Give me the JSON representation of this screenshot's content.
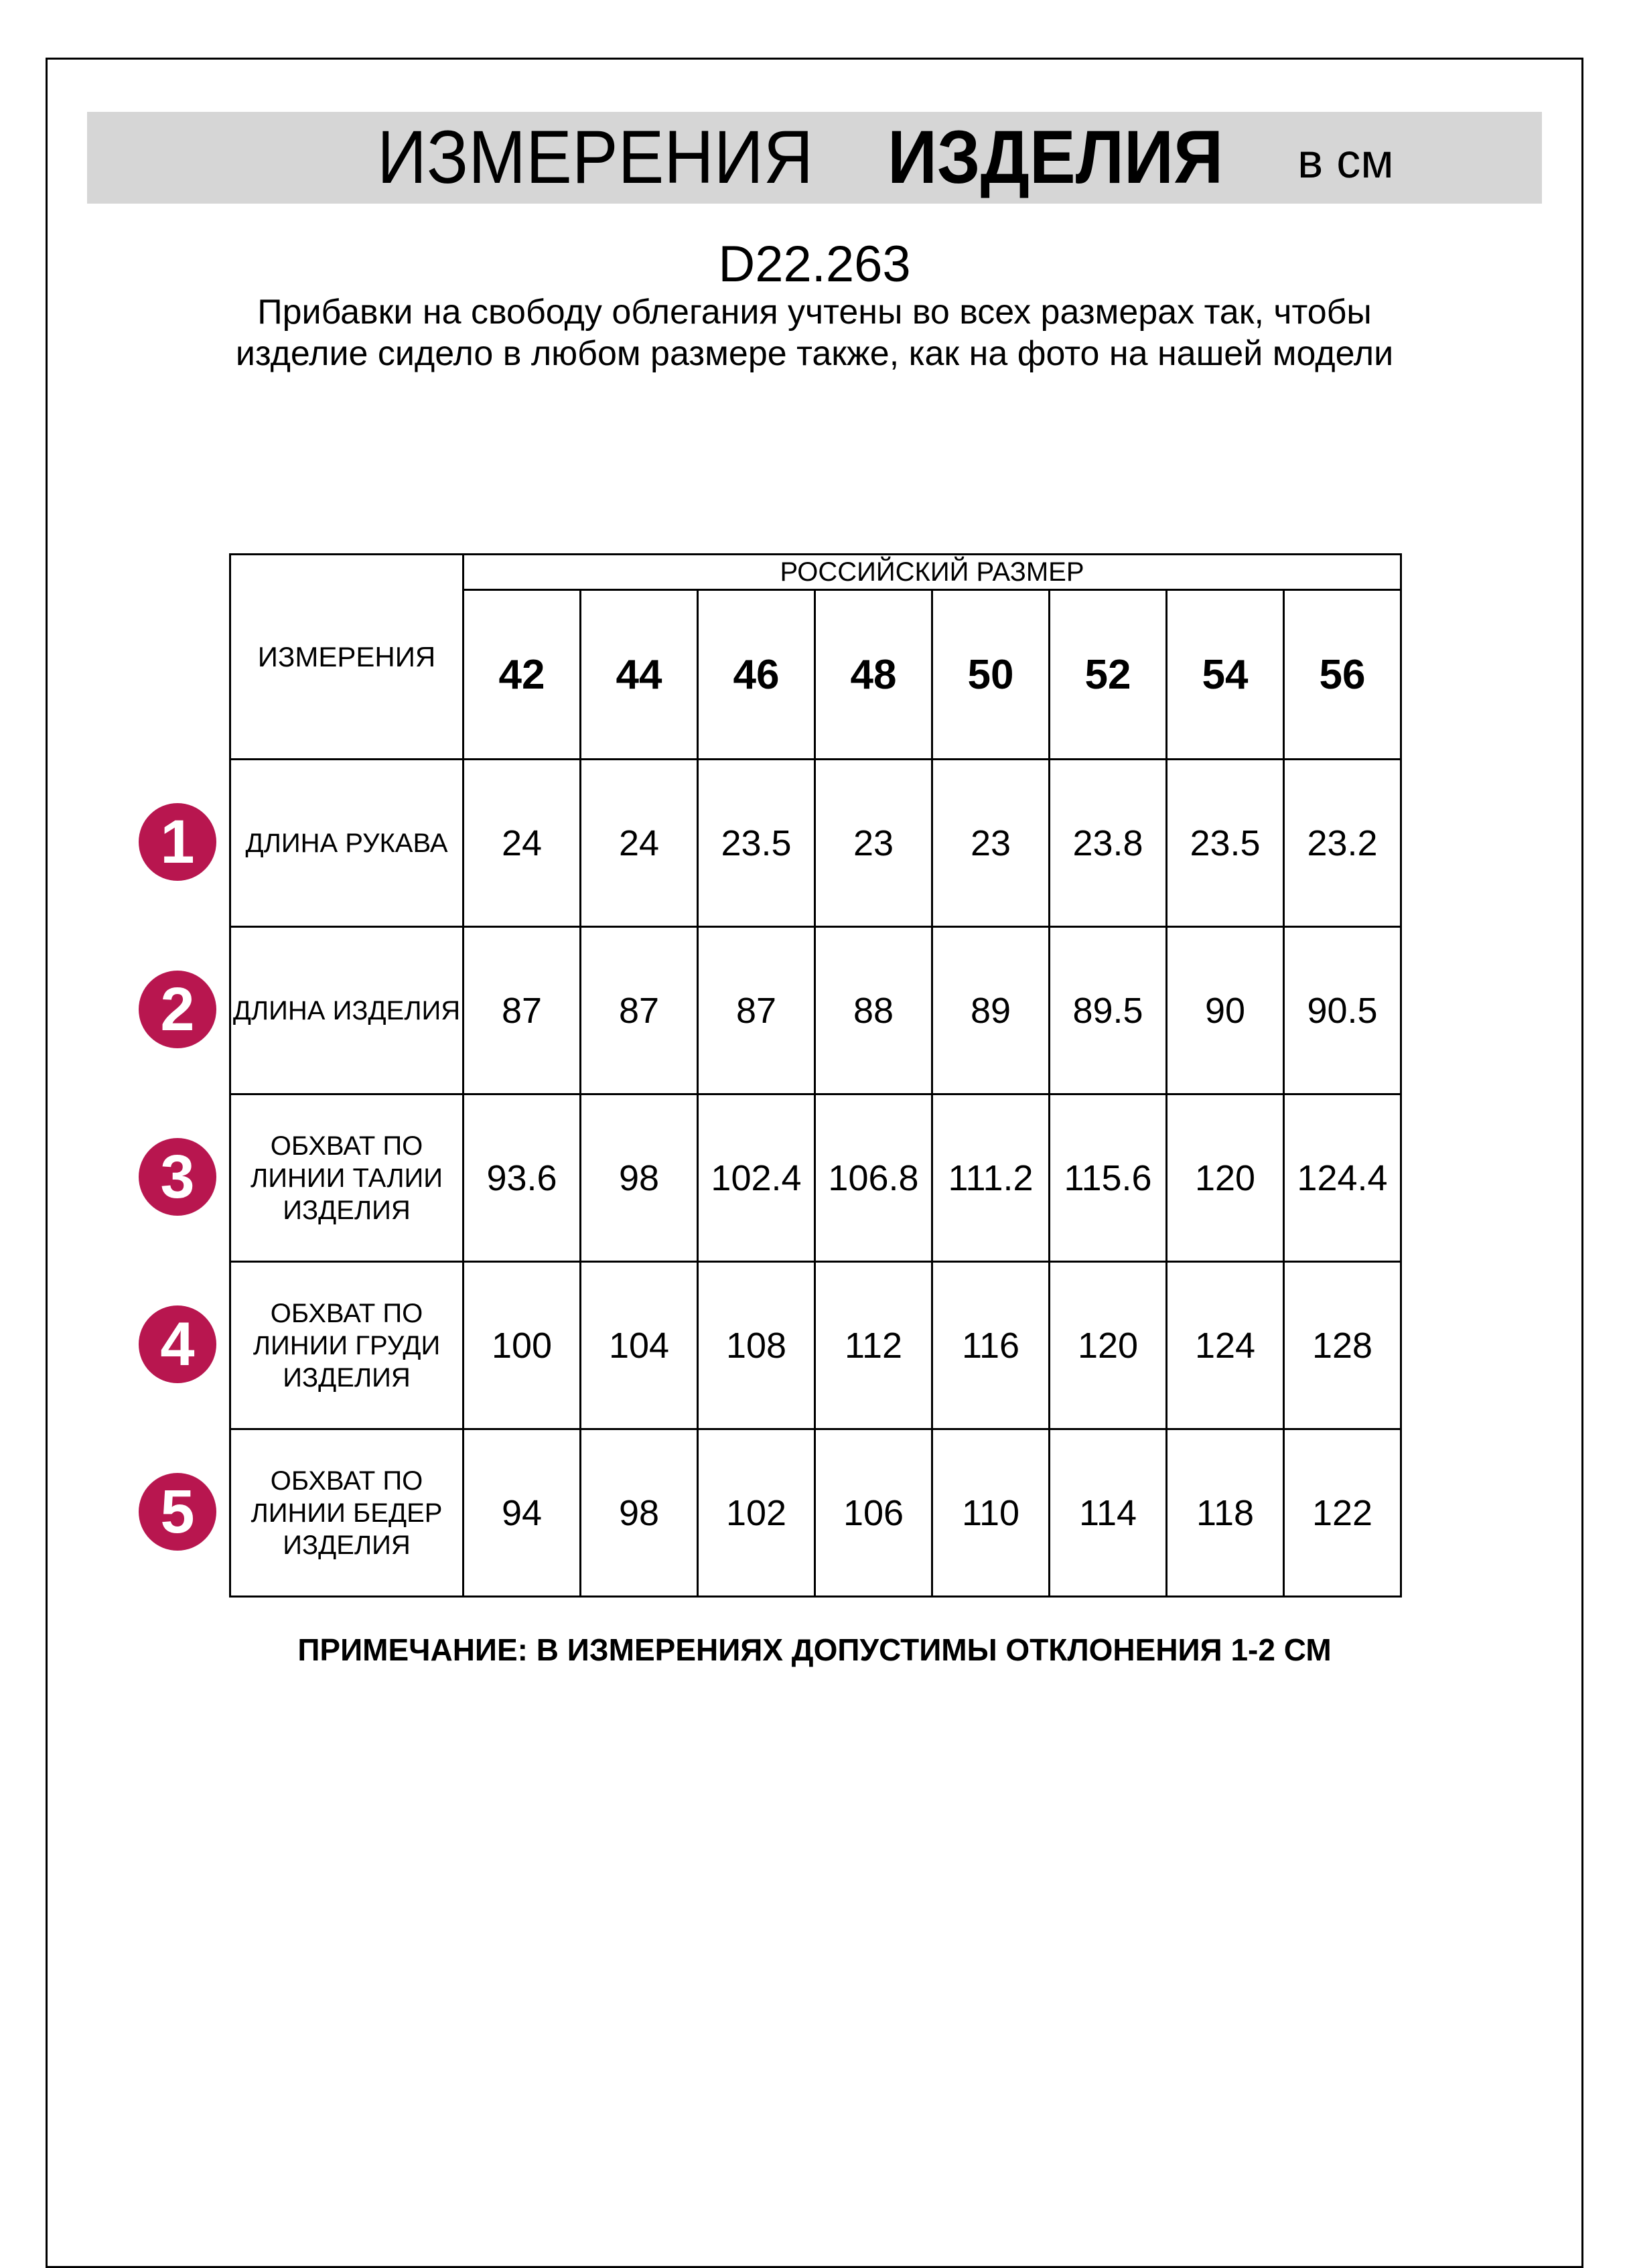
{
  "header": {
    "title_regular": "ИЗМЕРЕНИЯ",
    "title_bold": "ИЗДЕЛИЯ",
    "unit": "в см",
    "banner_color": "#d6d6d6"
  },
  "article": "D22.263",
  "description": "Прибавки на свободу облегания учтены во всех размерах так, чтобы изделие сидело в любом размере также, как на фото на нашей модели",
  "table": {
    "measure_header": "ИЗМЕРЕНИЯ",
    "size_group_header": "РОССИЙСКИЙ РАЗМЕР",
    "sizes": [
      "42",
      "44",
      "46",
      "48",
      "50",
      "52",
      "54",
      "56"
    ],
    "rows": [
      {
        "num": "1",
        "label": "ДЛИНА РУКАВА",
        "values": [
          "24",
          "24",
          "23.5",
          "23",
          "23",
          "23.8",
          "23.5",
          "23.2"
        ]
      },
      {
        "num": "2",
        "label": "ДЛИНА ИЗДЕЛИЯ",
        "values": [
          "87",
          "87",
          "87",
          "88",
          "89",
          "89.5",
          "90",
          "90.5"
        ]
      },
      {
        "num": "3",
        "label": "ОБХВАТ ПО ЛИНИИ ТАЛИИ ИЗДЕЛИЯ",
        "values": [
          "93.6",
          "98",
          "102.4",
          "106.8",
          "111.2",
          "115.6",
          "120",
          "124.4"
        ]
      },
      {
        "num": "4",
        "label": "ОБХВАТ ПО ЛИНИИ ГРУДИ ИЗДЕЛИЯ",
        "values": [
          "100",
          "104",
          "108",
          "112",
          "116",
          "120",
          "124",
          "128"
        ]
      },
      {
        "num": "5",
        "label": "ОБХВАТ ПО ЛИНИИ БЕДЕР ИЗДЕЛИЯ",
        "values": [
          "94",
          "98",
          "102",
          "106",
          "110",
          "114",
          "118",
          "122"
        ]
      }
    ],
    "badge_color": "#b8164f"
  },
  "note": "ПРИМЕЧАНИЕ: В ИЗМЕРЕНИЯХ ДОПУСТИМЫ ОТКЛОНЕНИЯ 1-2 СМ"
}
